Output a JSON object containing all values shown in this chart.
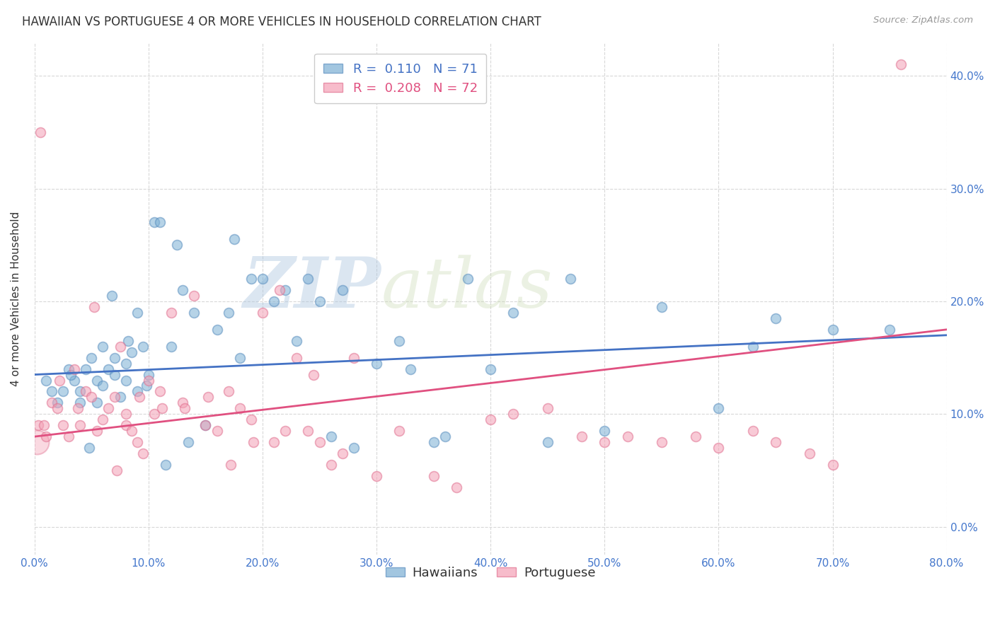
{
  "title": "HAWAIIAN VS PORTUGUESE 4 OR MORE VEHICLES IN HOUSEHOLD CORRELATION CHART",
  "source": "Source: ZipAtlas.com",
  "ylabel": "4 or more Vehicles in Household",
  "xmin": 0.0,
  "xmax": 80.0,
  "ymin": -2.5,
  "ymax": 43.0,
  "yticks": [
    0,
    10,
    20,
    30,
    40
  ],
  "xticks": [
    0,
    10,
    20,
    30,
    40,
    50,
    60,
    70,
    80
  ],
  "hawaiian_x": [
    1.0,
    1.5,
    2.0,
    2.5,
    3.0,
    3.5,
    4.0,
    4.0,
    4.5,
    5.0,
    5.5,
    5.5,
    6.0,
    6.0,
    6.5,
    7.0,
    7.0,
    7.5,
    8.0,
    8.0,
    8.5,
    9.0,
    9.0,
    9.5,
    10.0,
    10.5,
    11.0,
    12.0,
    12.5,
    13.0,
    14.0,
    15.0,
    16.0,
    17.0,
    17.5,
    18.0,
    19.0,
    20.0,
    21.0,
    22.0,
    23.0,
    24.0,
    25.0,
    26.0,
    27.0,
    28.0,
    30.0,
    32.0,
    33.0,
    35.0,
    36.0,
    38.0,
    40.0,
    42.0,
    45.0,
    47.0,
    50.0,
    55.0,
    60.0,
    63.0,
    65.0,
    70.0,
    75.0,
    3.2,
    4.8,
    6.8,
    8.2,
    9.8,
    11.5,
    13.5
  ],
  "hawaiian_y": [
    13.0,
    12.0,
    11.0,
    12.0,
    14.0,
    13.0,
    11.0,
    12.0,
    14.0,
    15.0,
    11.0,
    13.0,
    16.0,
    12.5,
    14.0,
    13.5,
    15.0,
    11.5,
    14.5,
    13.0,
    15.5,
    12.0,
    19.0,
    16.0,
    13.5,
    27.0,
    27.0,
    16.0,
    25.0,
    21.0,
    19.0,
    9.0,
    17.5,
    19.0,
    25.5,
    15.0,
    22.0,
    22.0,
    20.0,
    21.0,
    16.5,
    22.0,
    20.0,
    8.0,
    21.0,
    7.0,
    14.5,
    16.5,
    14.0,
    7.5,
    8.0,
    22.0,
    14.0,
    19.0,
    7.5,
    22.0,
    8.5,
    19.5,
    10.5,
    16.0,
    18.5,
    17.5,
    17.5,
    13.5,
    7.0,
    20.5,
    16.5,
    12.5,
    5.5,
    7.5
  ],
  "portuguese_x": [
    0.3,
    0.8,
    1.0,
    1.5,
    2.0,
    2.5,
    3.0,
    3.5,
    4.0,
    4.5,
    5.0,
    5.5,
    6.0,
    6.5,
    7.0,
    7.5,
    8.0,
    8.0,
    8.5,
    9.0,
    9.5,
    10.0,
    10.5,
    11.0,
    12.0,
    13.0,
    14.0,
    15.0,
    16.0,
    17.0,
    18.0,
    19.0,
    20.0,
    21.0,
    22.0,
    23.0,
    24.0,
    25.0,
    26.0,
    27.0,
    28.0,
    30.0,
    32.0,
    35.0,
    37.0,
    40.0,
    42.0,
    45.0,
    48.0,
    50.0,
    52.0,
    55.0,
    58.0,
    60.0,
    63.0,
    65.0,
    68.0,
    70.0,
    2.2,
    3.8,
    5.2,
    7.2,
    9.2,
    11.2,
    13.2,
    15.2,
    17.2,
    19.2,
    21.5,
    24.5,
    0.5,
    76.0
  ],
  "portuguese_y": [
    9.0,
    9.0,
    8.0,
    11.0,
    10.5,
    9.0,
    8.0,
    14.0,
    9.0,
    12.0,
    11.5,
    8.5,
    9.5,
    10.5,
    11.5,
    16.0,
    10.0,
    9.0,
    8.5,
    7.5,
    6.5,
    13.0,
    10.0,
    12.0,
    19.0,
    11.0,
    20.5,
    9.0,
    8.5,
    12.0,
    10.5,
    9.5,
    19.0,
    7.5,
    8.5,
    15.0,
    8.5,
    7.5,
    5.5,
    6.5,
    15.0,
    4.5,
    8.5,
    4.5,
    3.5,
    9.5,
    10.0,
    10.5,
    8.0,
    7.5,
    8.0,
    7.5,
    8.0,
    7.0,
    8.5,
    7.5,
    6.5,
    5.5,
    13.0,
    10.5,
    19.5,
    5.0,
    11.5,
    10.5,
    10.5,
    11.5,
    5.5,
    7.5,
    21.0,
    13.5,
    35.0,
    41.0
  ],
  "blue_color": "#7bafd4",
  "blue_edge_color": "#5b8fbf",
  "pink_color": "#f4a0b5",
  "pink_edge_color": "#e07090",
  "blue_line_color": "#4472c4",
  "pink_line_color": "#e05080",
  "marker_size": 100,
  "marker_alpha": 0.55,
  "watermark_zip": "ZIP",
  "watermark_atlas": "atlas",
  "watermark_color": "#c8d8e8",
  "background_color": "#ffffff",
  "grid_color": "#d8d8d8",
  "blue_reg_x0": 0.0,
  "blue_reg_y0": 13.5,
  "blue_reg_x1": 80.0,
  "blue_reg_y1": 17.0,
  "pink_reg_x0": 0.0,
  "pink_reg_y0": 8.0,
  "pink_reg_x1": 80.0,
  "pink_reg_y1": 17.5
}
